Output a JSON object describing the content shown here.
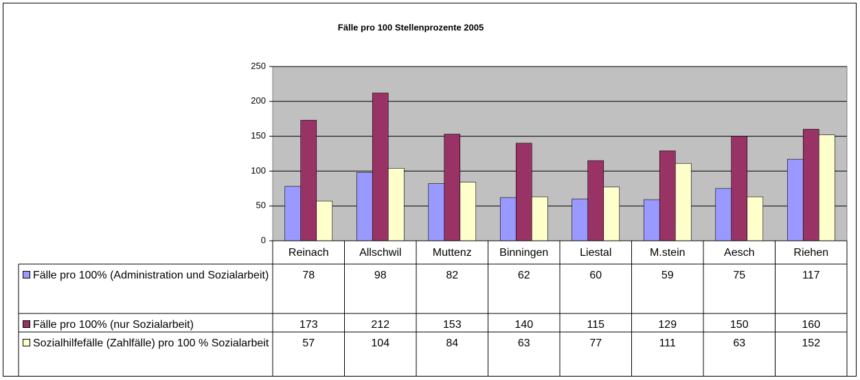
{
  "chart_data": {
    "type": "bar",
    "title": "Fälle pro 100 Stellenprozente 2005",
    "categories": [
      "Reinach",
      "Allschwil",
      "Muttenz",
      "Binningen",
      "Liestal",
      "M.stein",
      "Aesch",
      "Riehen"
    ],
    "series": [
      {
        "name": "Fälle pro 100% (Administration und Sozialarbeit)",
        "color": "#9999ff",
        "values": [
          78,
          98,
          82,
          62,
          60,
          59,
          75,
          117
        ]
      },
      {
        "name": "Fälle pro 100% (nur Sozialarbeit)",
        "color": "#993366",
        "values": [
          173,
          212,
          153,
          140,
          115,
          129,
          150,
          160
        ]
      },
      {
        "name": "Sozialhilfefälle (Zahlfälle) pro 100 % Sozialarbeit",
        "color": "#ffffcc",
        "values": [
          57,
          104,
          84,
          63,
          77,
          111,
          63,
          152
        ]
      }
    ],
    "ylim": [
      0,
      250
    ],
    "yticks": [
      0,
      50,
      100,
      150,
      200,
      250
    ],
    "grid": true,
    "plot_background": "#c0c0c0"
  }
}
